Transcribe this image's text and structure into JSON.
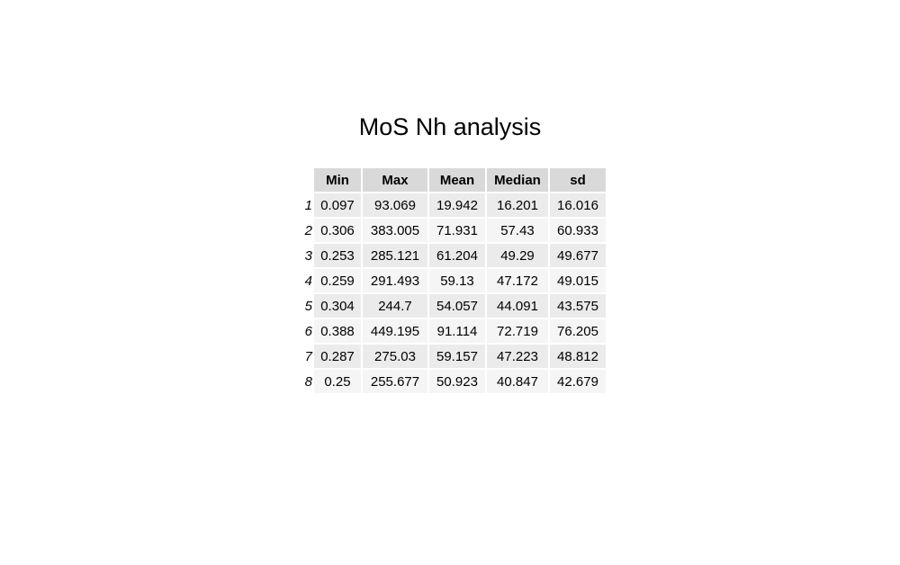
{
  "chart_data": {
    "type": "table",
    "title": "MoS Nh analysis",
    "columns": [
      "Min",
      "Max",
      "Mean",
      "Median",
      "sd"
    ],
    "row_names": [
      "1",
      "2",
      "3",
      "4",
      "5",
      "6",
      "7",
      "8"
    ],
    "rows": [
      [
        "0.097",
        "93.069",
        "19.942",
        "16.201",
        "16.016"
      ],
      [
        "0.306",
        "383.005",
        "71.931",
        "57.43",
        "60.933"
      ],
      [
        "0.253",
        "285.121",
        "61.204",
        "49.29",
        "49.677"
      ],
      [
        "0.259",
        "291.493",
        "59.13",
        "47.172",
        "49.015"
      ],
      [
        "0.304",
        "244.7",
        "54.057",
        "44.091",
        "43.575"
      ],
      [
        "0.388",
        "449.195",
        "91.114",
        "72.719",
        "76.205"
      ],
      [
        "0.287",
        "275.03",
        "59.157",
        "47.223",
        "48.812"
      ],
      [
        "0.25",
        "255.677",
        "50.923",
        "40.847",
        "42.679"
      ]
    ],
    "colors": {
      "header_fill": "#d9d9d9",
      "row_fill_odd": "#ebebeb",
      "row_fill_even": "#f5f5f5"
    }
  }
}
